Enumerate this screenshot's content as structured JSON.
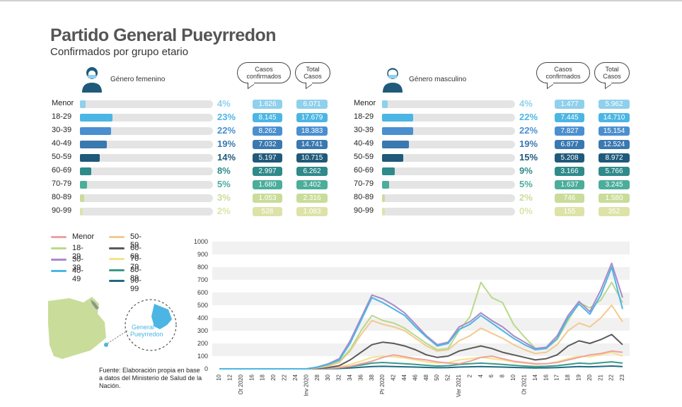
{
  "title": "Partido General Pueyrredon",
  "subtitle": "Confirmados por grupo etario",
  "colors": {
    "Menor": "#8fd0ec",
    "18-29": "#4bb6e4",
    "30-39": "#4a8fcf",
    "40-49": "#3a78b0",
    "50-59": "#1f5a7a",
    "60-69": "#2f8a8a",
    "70-79": "#4bad9a",
    "80-89": "#c9dc9a",
    "90-99": "#dde2a8"
  },
  "header": {
    "casos_label": "Casos confirmados",
    "total_label": "Total Casos"
  },
  "female": {
    "label": "Género femenino",
    "rows": [
      {
        "age": "Menor",
        "pct": "4%",
        "pct_value": 4,
        "casos": "1.626",
        "total": "6.071"
      },
      {
        "age": "18-29",
        "pct": "23%",
        "pct_value": 23,
        "casos": "8.145",
        "total": "17.679"
      },
      {
        "age": "30-39",
        "pct": "22%",
        "pct_value": 22,
        "casos": "8.262",
        "total": "18.383"
      },
      {
        "age": "40-49",
        "pct": "19%",
        "pct_value": 19,
        "casos": "7.032",
        "total": "14.741"
      },
      {
        "age": "50-59",
        "pct": "14%",
        "pct_value": 14,
        "casos": "5.197",
        "total": "10.715"
      },
      {
        "age": "60-69",
        "pct": "8%",
        "pct_value": 8,
        "casos": "2.997",
        "total": "6.262"
      },
      {
        "age": "70-79",
        "pct": "5%",
        "pct_value": 5,
        "casos": "1.680",
        "total": "3.402"
      },
      {
        "age": "80-89",
        "pct": "3%",
        "pct_value": 3,
        "casos": "1.053",
        "total": "2.316"
      },
      {
        "age": "90-99",
        "pct": "2%",
        "pct_value": 2,
        "casos": "528",
        "total": "1.083"
      }
    ]
  },
  "male": {
    "label": "Género masculino",
    "rows": [
      {
        "age": "Menor",
        "pct": "4%",
        "pct_value": 4,
        "casos": "1.477",
        "total": "5.962"
      },
      {
        "age": "18-29",
        "pct": "22%",
        "pct_value": 22,
        "casos": "7.445",
        "total": "14.710"
      },
      {
        "age": "30-39",
        "pct": "22%",
        "pct_value": 22,
        "casos": "7.827",
        "total": "15.154"
      },
      {
        "age": "40-49",
        "pct": "19%",
        "pct_value": 19,
        "casos": "6.877",
        "total": "12.524"
      },
      {
        "age": "50-59",
        "pct": "15%",
        "pct_value": 15,
        "casos": "5.208",
        "total": "8.972"
      },
      {
        "age": "60-69",
        "pct": "9%",
        "pct_value": 9,
        "casos": "3.166",
        "total": "5.766"
      },
      {
        "age": "70-79",
        "pct": "5%",
        "pct_value": 5,
        "casos": "1.637",
        "total": "3.245"
      },
      {
        "age": "80-89",
        "pct": "2%",
        "pct_value": 2,
        "casos": "746",
        "total": "1.580"
      },
      {
        "age": "90-99",
        "pct": "0%",
        "pct_value": 0,
        "casos": "155",
        "total": "352"
      }
    ]
  },
  "map": {
    "label_line1": "General",
    "label_line2": "Pueyrredon"
  },
  "source": "Fuente: Elaboración propia en base a datos del Ministerio de Salud de la Nación.",
  "chart_data": {
    "type": "line",
    "title": "",
    "xlabel": "",
    "ylabel": "",
    "ylim": [
      0,
      1000
    ],
    "yticks": [
      0,
      100,
      200,
      300,
      400,
      500,
      600,
      700,
      800,
      900,
      1000
    ],
    "xtick_labels": [
      "10",
      "12",
      "Ot 2020",
      "16",
      "18",
      "20",
      "22",
      "24",
      "Inv 2020",
      "28",
      "30",
      "32",
      "34",
      "36",
      "38",
      "Pr 2020",
      "42",
      "44",
      "46",
      "48",
      "50",
      "52",
      "Ver 2021",
      "2",
      "4",
      "6",
      "8",
      "10",
      "Ot 2021",
      "14",
      "16",
      "17",
      "18",
      "19",
      "20",
      "21",
      "22",
      "23"
    ],
    "legend": [
      "Menor",
      "18-29",
      "30-39",
      "40-49",
      "50-59",
      "60-69",
      "70-79",
      "80-89",
      "90-99"
    ],
    "series": [
      {
        "name": "Menor",
        "values": [
          0,
          0,
          0,
          0,
          0,
          0,
          0,
          0,
          0,
          2,
          5,
          10,
          20,
          40,
          60,
          90,
          110,
          95,
          80,
          70,
          55,
          45,
          40,
          60,
          90,
          100,
          80,
          60,
          50,
          40,
          40,
          50,
          70,
          90,
          110,
          120,
          140,
          130
        ]
      },
      {
        "name": "18-29",
        "values": [
          0,
          0,
          0,
          0,
          0,
          0,
          0,
          0,
          0,
          10,
          30,
          60,
          150,
          300,
          420,
          380,
          360,
          320,
          260,
          200,
          150,
          160,
          300,
          410,
          680,
          560,
          520,
          350,
          250,
          160,
          160,
          230,
          380,
          520,
          480,
          540,
          680,
          520
        ]
      },
      {
        "name": "30-39",
        "values": [
          0,
          0,
          0,
          0,
          0,
          0,
          0,
          0,
          0,
          15,
          40,
          80,
          220,
          400,
          580,
          550,
          500,
          440,
          350,
          260,
          190,
          210,
          330,
          370,
          440,
          380,
          330,
          260,
          210,
          160,
          170,
          260,
          420,
          530,
          450,
          620,
          830,
          560
        ]
      },
      {
        "name": "40-49",
        "values": [
          0,
          0,
          0,
          0,
          0,
          0,
          0,
          0,
          0,
          12,
          35,
          70,
          200,
          380,
          560,
          520,
          470,
          420,
          330,
          250,
          180,
          200,
          310,
          350,
          420,
          360,
          300,
          240,
          190,
          150,
          160,
          240,
          400,
          510,
          430,
          580,
          800,
          470
        ]
      },
      {
        "name": "50-59",
        "values": [
          0,
          0,
          0,
          0,
          0,
          0,
          0,
          0,
          0,
          8,
          20,
          50,
          140,
          270,
          380,
          350,
          330,
          300,
          240,
          180,
          140,
          150,
          220,
          260,
          320,
          280,
          240,
          190,
          150,
          120,
          130,
          190,
          300,
          360,
          330,
          400,
          500,
          370
        ]
      },
      {
        "name": "60-69",
        "values": [
          0,
          0,
          0,
          0,
          0,
          0,
          0,
          0,
          0,
          4,
          10,
          25,
          70,
          130,
          190,
          210,
          200,
          180,
          150,
          110,
          90,
          100,
          140,
          160,
          180,
          160,
          130,
          110,
          90,
          70,
          80,
          110,
          180,
          220,
          200,
          230,
          270,
          190
        ]
      },
      {
        "name": "70-79",
        "values": [
          0,
          0,
          0,
          0,
          0,
          0,
          0,
          0,
          0,
          2,
          6,
          15,
          35,
          60,
          90,
          100,
          95,
          85,
          70,
          55,
          45,
          50,
          70,
          80,
          90,
          80,
          70,
          55,
          45,
          35,
          40,
          55,
          80,
          100,
          95,
          110,
          130,
          100
        ]
      },
      {
        "name": "80-89",
        "values": [
          0,
          0,
          0,
          0,
          0,
          0,
          0,
          0,
          0,
          1,
          3,
          8,
          18,
          30,
          45,
          50,
          45,
          40,
          35,
          28,
          22,
          25,
          35,
          40,
          45,
          40,
          35,
          28,
          22,
          18,
          20,
          25,
          35,
          45,
          40,
          48,
          55,
          45
        ]
      },
      {
        "name": "90-99",
        "values": [
          0,
          0,
          0,
          0,
          0,
          0,
          0,
          0,
          0,
          0,
          1,
          3,
          7,
          12,
          18,
          20,
          18,
          16,
          14,
          11,
          9,
          10,
          14,
          16,
          18,
          16,
          14,
          11,
          9,
          7,
          8,
          10,
          14,
          18,
          16,
          19,
          22,
          18
        ]
      }
    ]
  }
}
